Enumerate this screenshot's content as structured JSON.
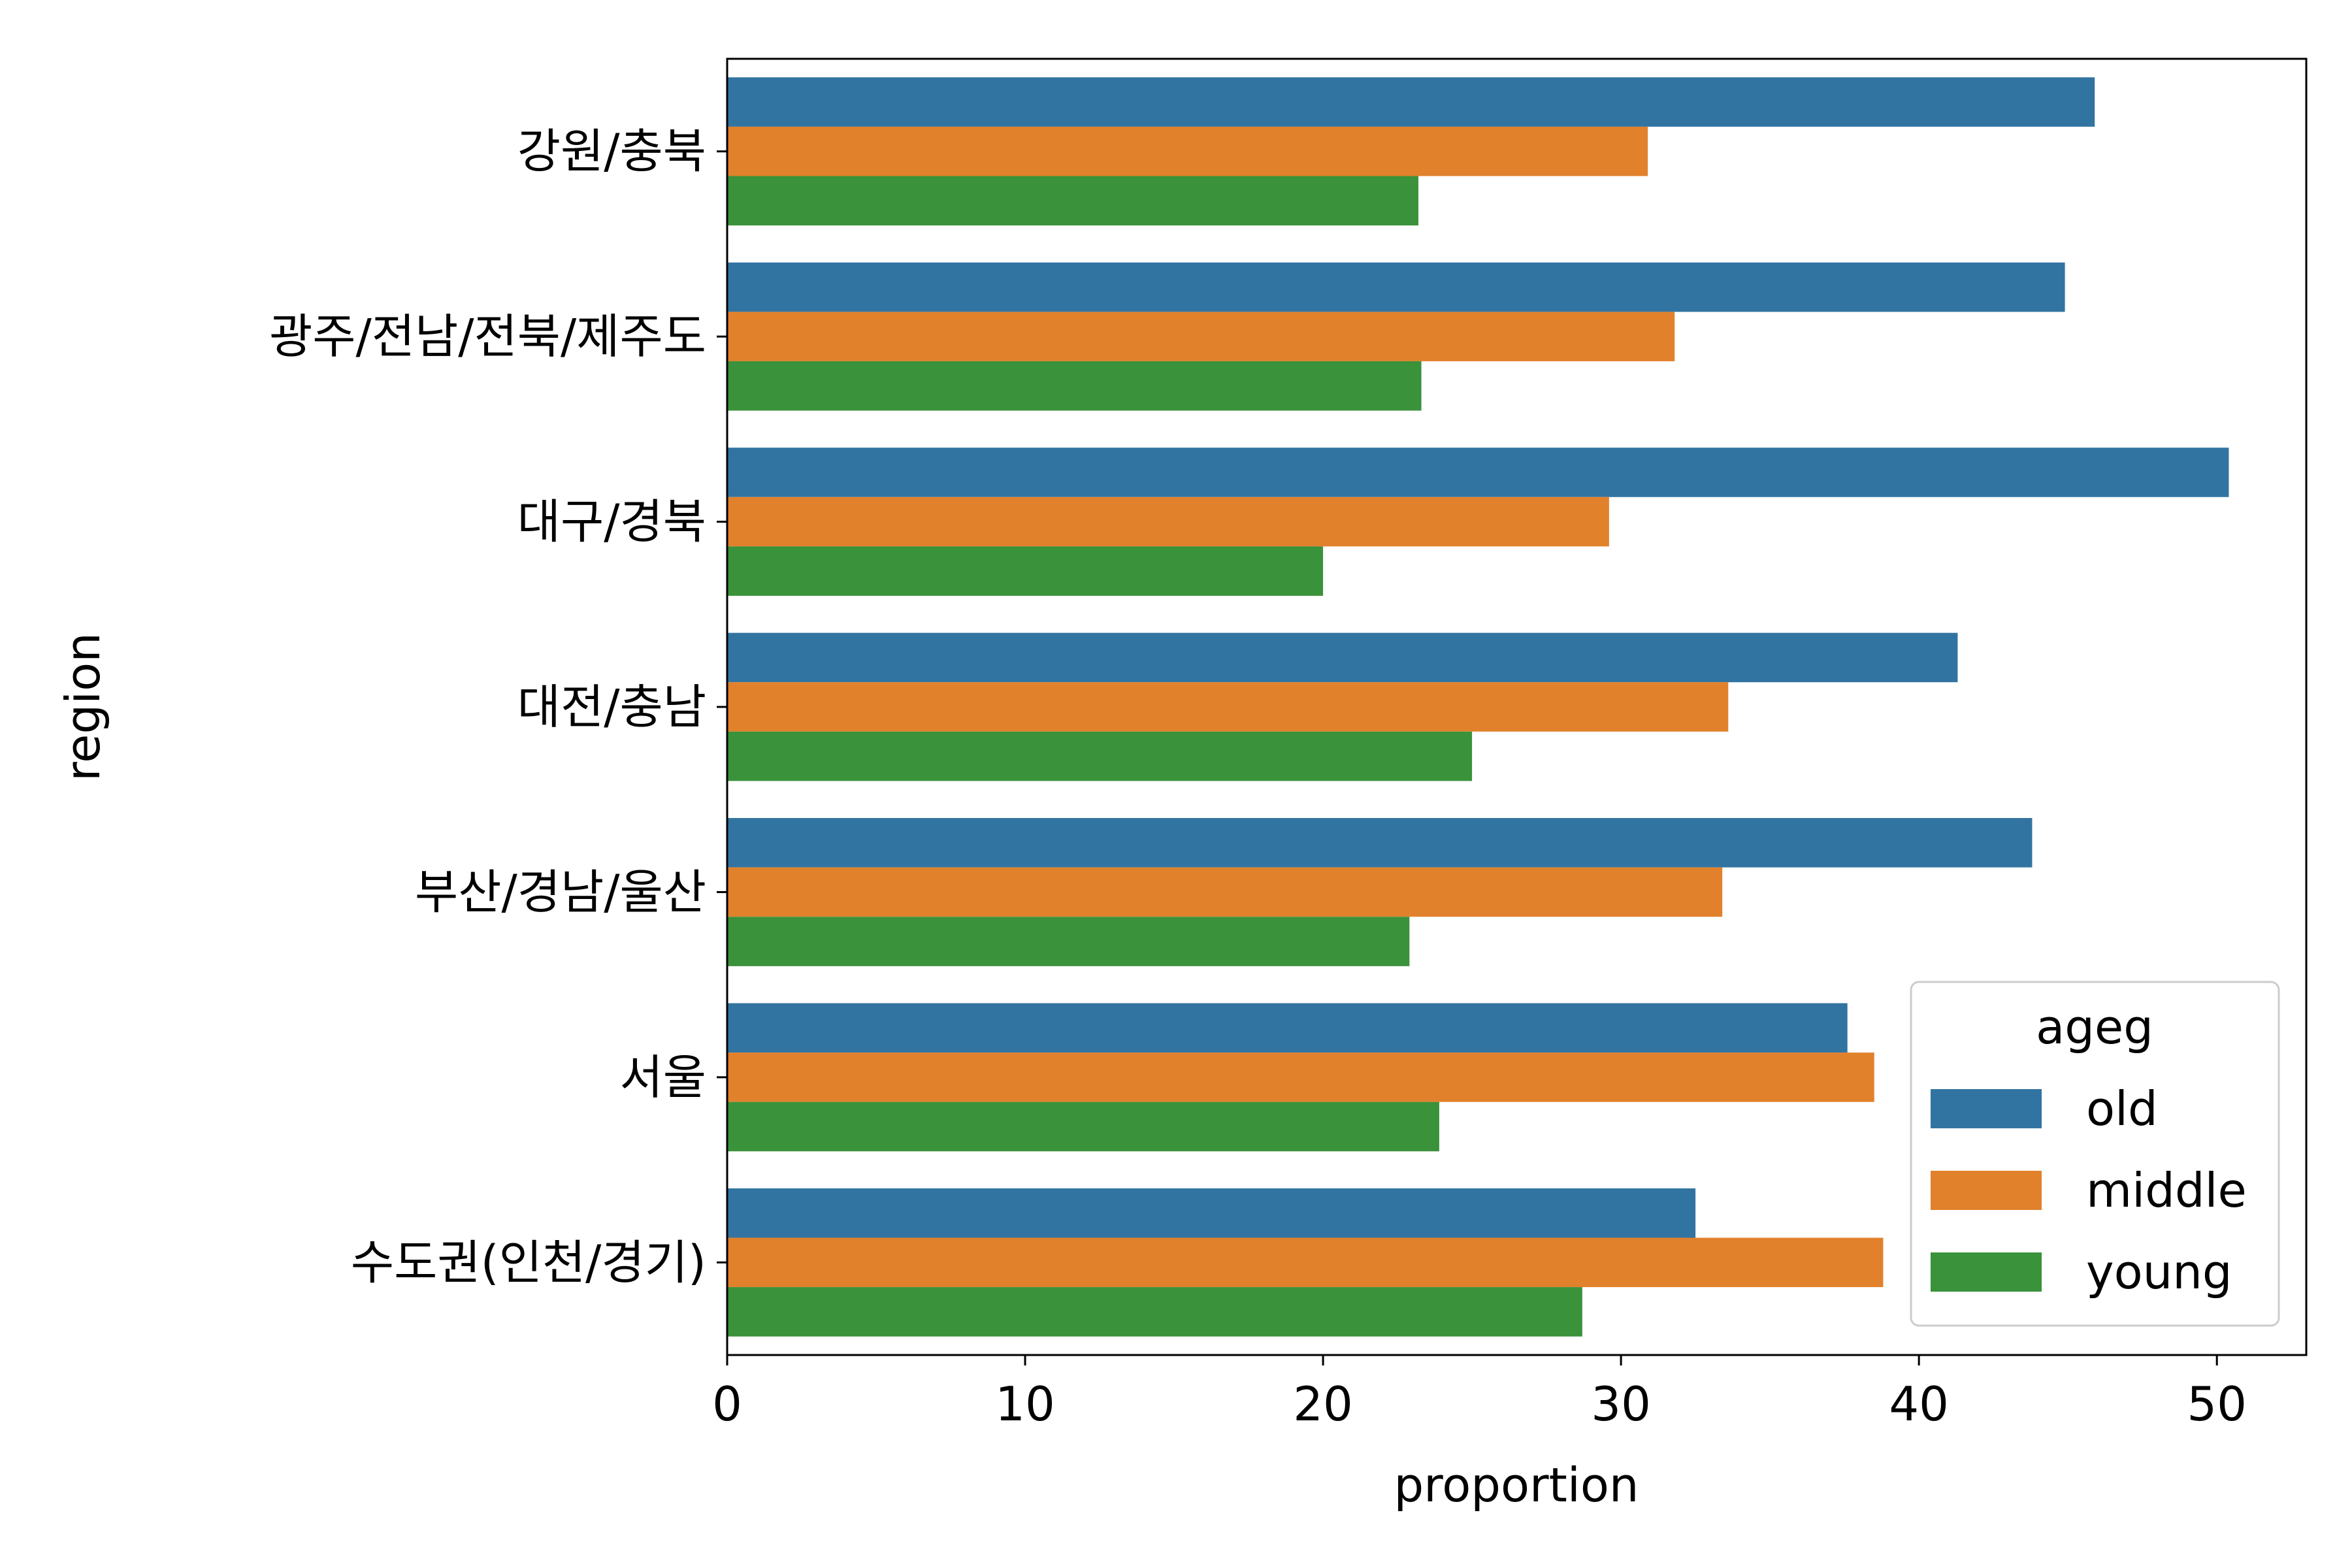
{
  "chart_data": {
    "type": "bar",
    "orientation": "horizontal",
    "categories": [
      "강원/충북",
      "광주/전남/전북/제주도",
      "대구/경북",
      "대전/충남",
      "부산/경남/울산",
      "서울",
      "수도권(인천/경기)"
    ],
    "series": [
      {
        "name": "old",
        "color": "#3274a1",
        "values": [
          45.9,
          44.9,
          50.4,
          41.3,
          43.8,
          37.6,
          32.5
        ]
      },
      {
        "name": "middle",
        "color": "#e1812c",
        "values": [
          30.9,
          31.8,
          29.6,
          33.6,
          33.4,
          38.5,
          38.8
        ]
      },
      {
        "name": "young",
        "color": "#3a923a",
        "values": [
          23.2,
          23.3,
          20.0,
          25.0,
          22.9,
          23.9,
          28.7
        ]
      }
    ],
    "xlabel": "proportion",
    "ylabel": "region",
    "xlim": [
      0,
      53
    ],
    "xticks": [
      "0",
      "10",
      "20",
      "30",
      "40",
      "50"
    ],
    "grid": false,
    "legend": {
      "title": "ageg",
      "placement": "lower right"
    }
  }
}
